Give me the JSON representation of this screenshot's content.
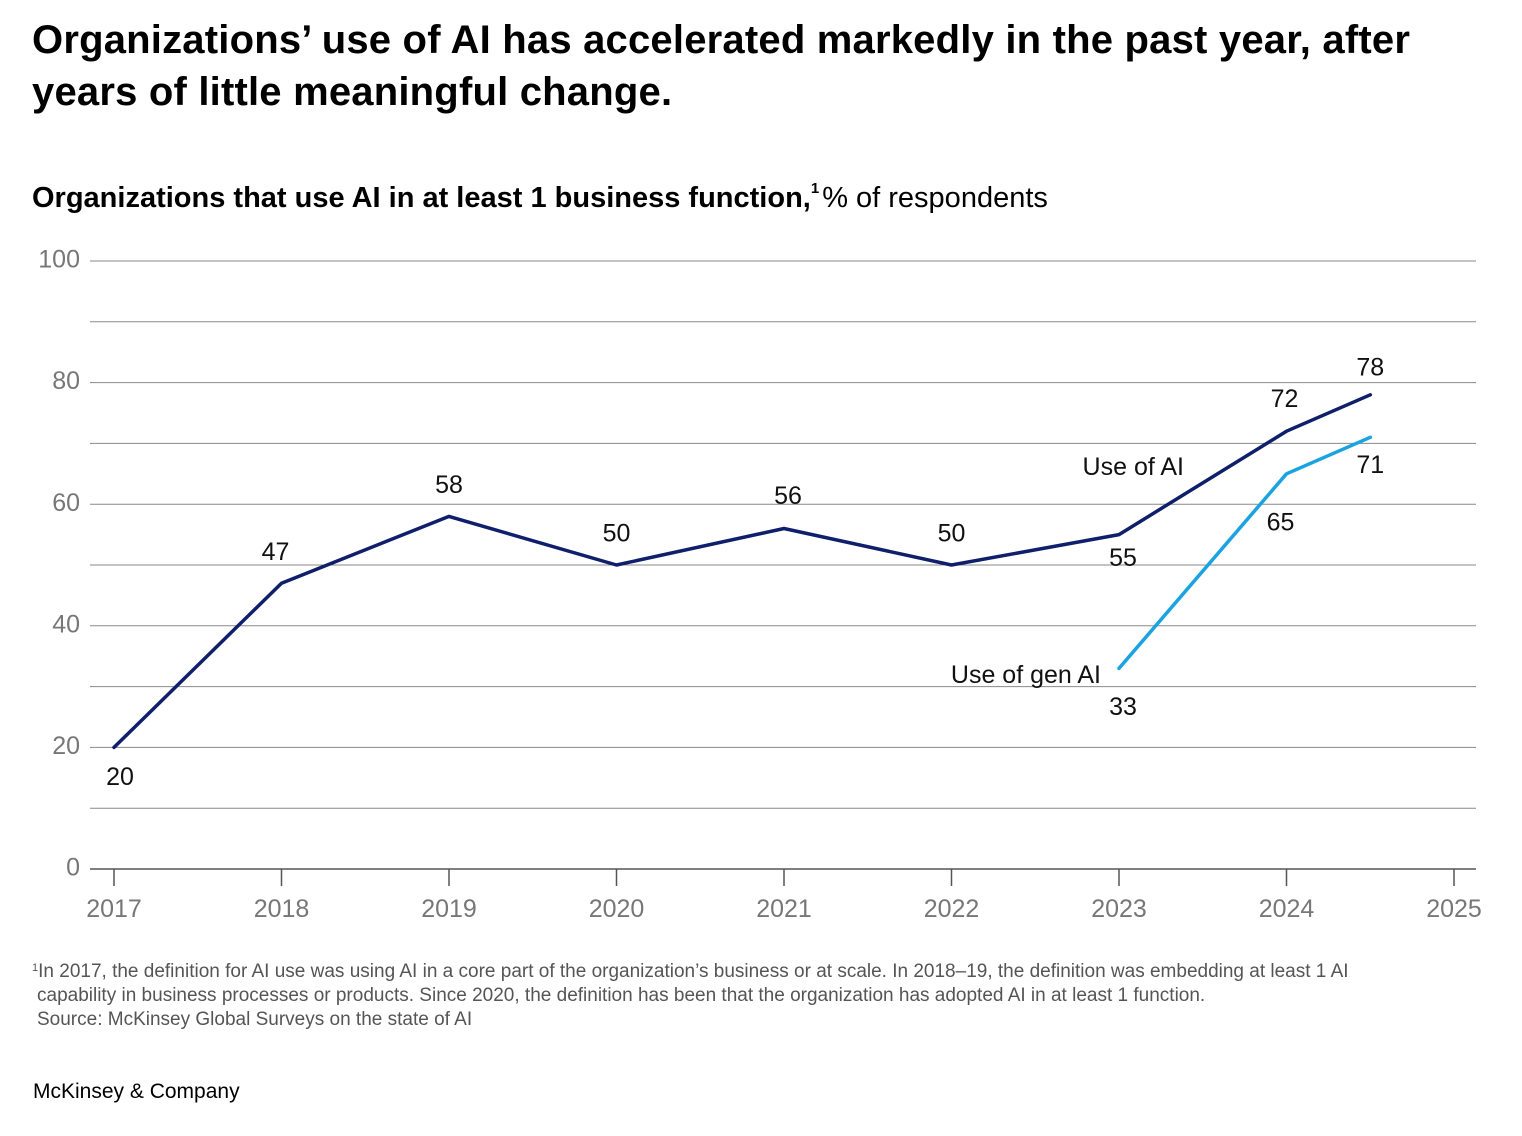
{
  "title": "Organizations’ use of AI has accelerated markedly in the past year, after years of little meaningful change.",
  "subtitle": {
    "bold": "Organizations that use AI in at least 1 business function,",
    "footnote_marker": "1",
    "rest": "% of respondents"
  },
  "chart_data": {
    "type": "line",
    "title": "Organizations that use AI in at least 1 business function, % of respondents",
    "xlabel": "",
    "ylabel": "% of respondents",
    "ylim": [
      0,
      100
    ],
    "xlim": [
      2017,
      2025
    ],
    "yticks": [
      0,
      20,
      40,
      60,
      80,
      100
    ],
    "ytick_labels": [
      "0",
      "20",
      "40",
      "60",
      "80",
      "100"
    ],
    "xticks": [
      2017,
      2018,
      2019,
      2020,
      2021,
      2022,
      2023,
      2024,
      2025
    ],
    "xtick_labels": [
      "2017",
      "2018",
      "2019",
      "2020",
      "2021",
      "2022",
      "2023",
      "2024",
      "2025"
    ],
    "grid": true,
    "series": [
      {
        "name": "Use of AI",
        "color": "#0f1f6b",
        "x": [
          2017,
          2018,
          2019,
          2020,
          2021,
          2022,
          2023,
          2024,
          2024.5
        ],
        "values": [
          20,
          47,
          58,
          50,
          56,
          50,
          55,
          72,
          78
        ],
        "labels": [
          "20",
          "47",
          "58",
          "50",
          "56",
          "50",
          "55",
          "72",
          "78"
        ]
      },
      {
        "name": "Use of gen AI",
        "color": "#1aa3e0",
        "x": [
          2023,
          2024,
          2024.5
        ],
        "values": [
          33,
          65,
          71
        ],
        "labels": [
          "33",
          "65",
          "71"
        ]
      }
    ]
  },
  "footnote": {
    "marker": "1",
    "line1": "In 2017, the definition for AI use was using AI in a core part of the organization’s business or at scale. In 2018–19, the definition was embedding at least 1 AI",
    "line2": "capability in business processes or products. Since 2020, the definition has been that the organization has adopted AI in at least 1 function.",
    "source": "Source: McKinsey Global Surveys on the state of AI"
  },
  "brand": "McKinsey & Company"
}
